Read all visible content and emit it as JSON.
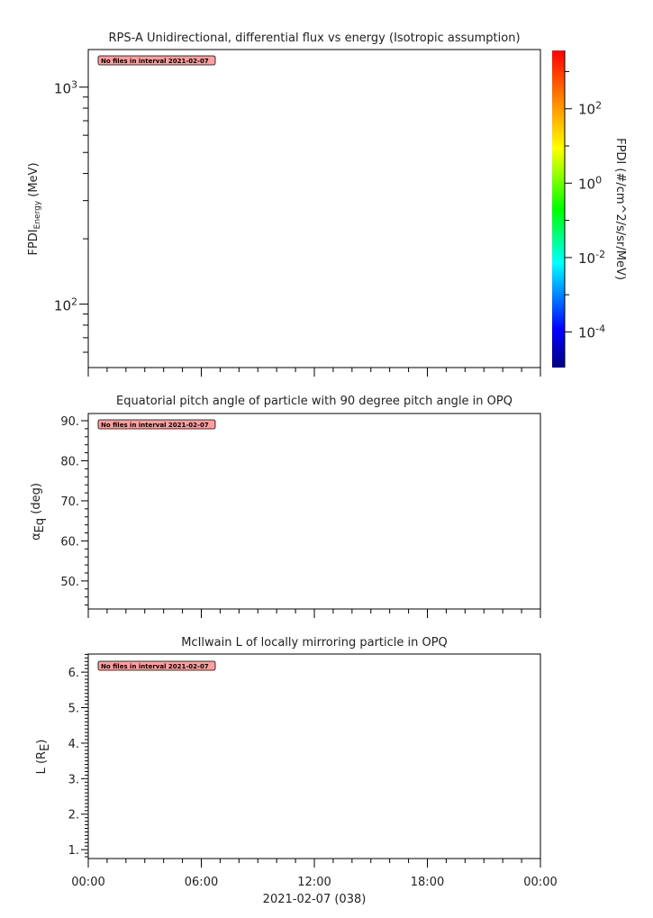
{
  "chart_data": [
    {
      "type": "heatmap",
      "title": "RPS-A Unidirectional, differential flux vs energy (Isotropic assumption)",
      "ylabel": {
        "main": "FPDI",
        "sub": "Energy",
        "unit": " (MeV)"
      },
      "yscale": "log",
      "ylim": [
        51,
        1490
      ],
      "yticks": [
        {
          "value": 100,
          "base": "10",
          "exp": "2"
        },
        {
          "value": 1000,
          "base": "10",
          "exp": "3"
        }
      ],
      "annotation": "No files in interval 2021-02-07",
      "colorbar": {
        "label": "FPDI (#/cm^2/s/sr/MeV)",
        "scale": "log",
        "range": [
          1.1e-05,
          3700
        ],
        "ticks": [
          {
            "value": 0.0001,
            "base": "10",
            "exp": "-4"
          },
          {
            "value": 0.01,
            "base": "10",
            "exp": "-2"
          },
          {
            "value": 1,
            "base": "10",
            "exp": "0"
          },
          {
            "value": 100,
            "base": "10",
            "exp": "2"
          }
        ],
        "colors": [
          "#00007f",
          "#0000ff",
          "#00ffff",
          "#00ff00",
          "#ffff00",
          "#ff8000",
          "#ff0000"
        ]
      },
      "series": []
    },
    {
      "type": "line",
      "title": "Equatorial pitch angle of particle with 90 degree pitch angle in OPQ",
      "ylabel": {
        "main": "α",
        "sub": "Eq",
        "unit": " (deg)"
      },
      "ylim": [
        43.0,
        91.8
      ],
      "yticks": [
        "50.",
        "60.",
        "70.",
        "80.",
        "90."
      ],
      "ytick_values": [
        50,
        60,
        70,
        80,
        90
      ],
      "yminor_step": 2,
      "annotation": "No files in interval 2021-02-07",
      "series": []
    },
    {
      "type": "line",
      "title": "McIlwain L of locally mirroring particle in OPQ",
      "ylabel": {
        "main": "L (R",
        "sub": "E",
        "unit": ")"
      },
      "ylim": [
        0.75,
        6.51
      ],
      "yticks": [
        "1.",
        "2.",
        "3.",
        "4.",
        "5.",
        "6."
      ],
      "ytick_values": [
        1,
        2,
        3,
        4,
        5,
        6
      ],
      "yminor_step": 0.1,
      "annotation": "No files in interval 2021-02-07",
      "series": []
    }
  ],
  "xaxis": {
    "ticks": [
      "00:00",
      "06:00",
      "12:00",
      "18:00",
      "00:00"
    ],
    "range_hours": [
      0,
      24
    ],
    "major_step_hours": 6,
    "minor_step_hours": 1,
    "label": "2021-02-07 (038)"
  },
  "annotation_color": "#ff9f9f"
}
